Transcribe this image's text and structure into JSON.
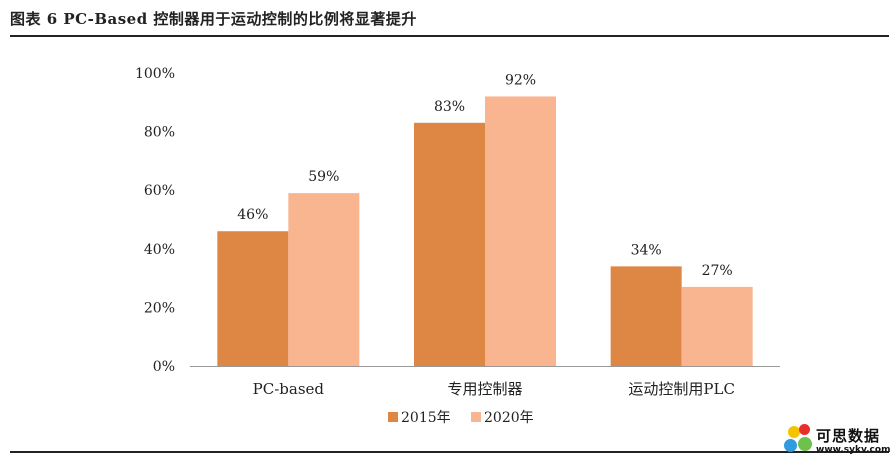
{
  "figure": {
    "title": "图表 6   PC-Based 控制器用于运动控制的比例将显著提升"
  },
  "chart_data": {
    "type": "bar",
    "categories": [
      "PC-based",
      "专用控制器",
      "运动控制用PLC"
    ],
    "series": [
      {
        "name": "2015年",
        "values": [
          46,
          83,
          34
        ],
        "labels": [
          "46%",
          "83%",
          "34%"
        ],
        "color": "#DE8643"
      },
      {
        "name": "2020年",
        "values": [
          59,
          92,
          27
        ],
        "labels": [
          "59%",
          "92%",
          "27%"
        ],
        "color": "#F8B58F"
      }
    ],
    "yticks": [
      "0%",
      "20%",
      "40%",
      "60%",
      "80%",
      "100%"
    ],
    "ylim": [
      0,
      100
    ],
    "grid": false,
    "legend_position": "bottom"
  },
  "watermark": {
    "text": "可思数据",
    "url": "www.sykv.com",
    "colors": [
      "#F5C400",
      "#E8302A",
      "#2F9BE0",
      "#6CC24A"
    ]
  }
}
